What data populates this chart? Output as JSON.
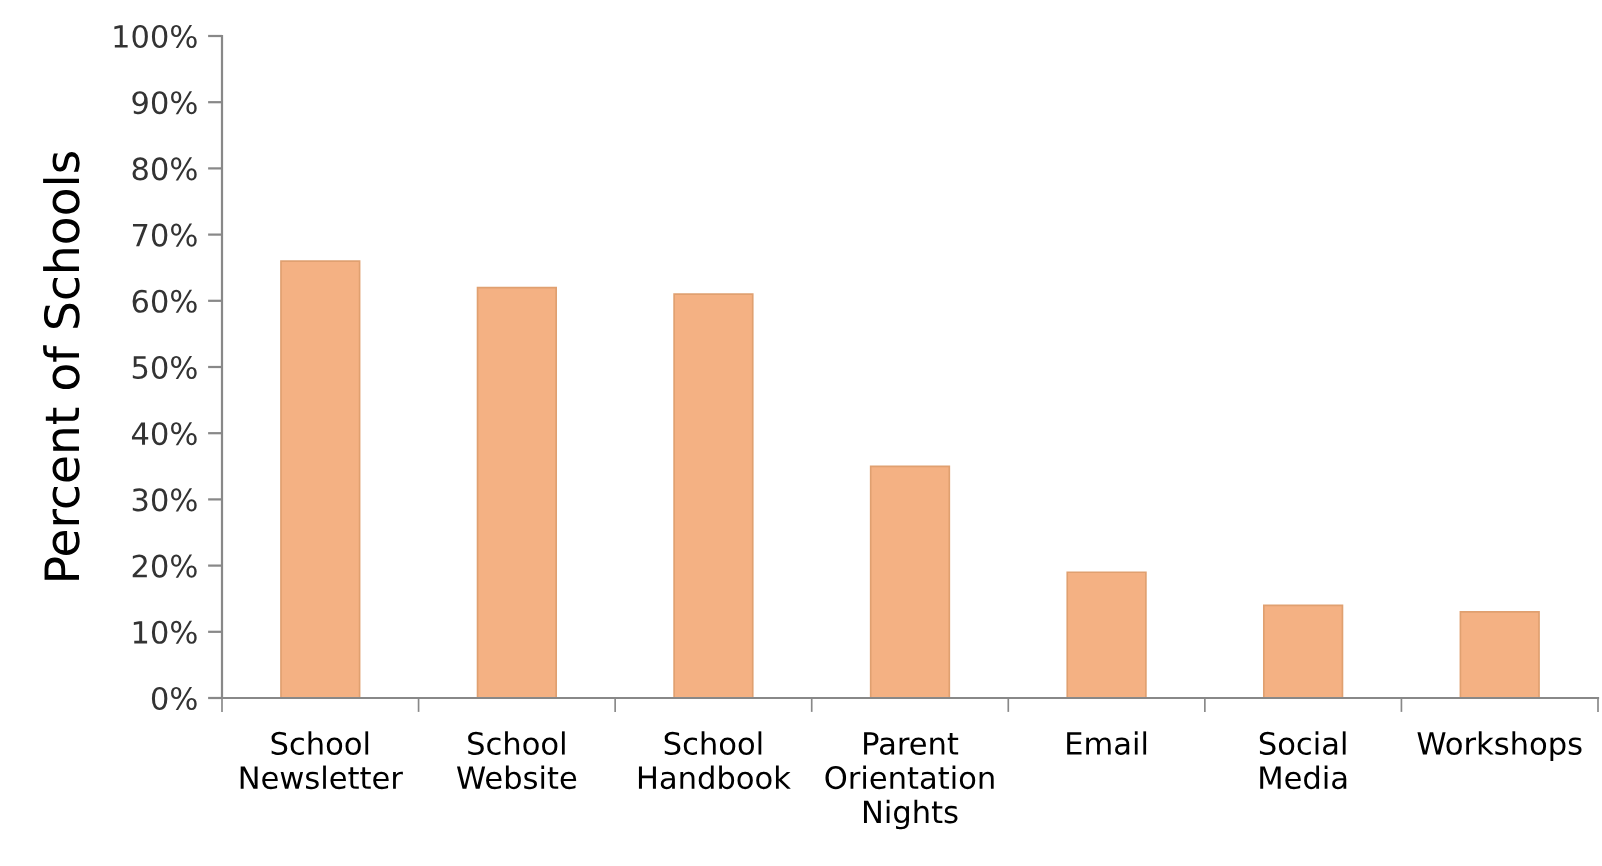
{
  "chart_data": {
    "type": "bar",
    "ylabel": "Percent of Schools",
    "categories": [
      "School\nNewsletter",
      "School\nWebsite",
      "School\nHandbook",
      "Parent\nOrientation\nNights",
      "Email",
      "Social\nMedia",
      "Workshops"
    ],
    "values": [
      66,
      62,
      61,
      35,
      19,
      14,
      13
    ],
    "color": "#f4b183",
    "ylim": [
      0,
      100
    ],
    "yticks": [
      {
        "value": 0,
        "label": "0%"
      },
      {
        "value": 10,
        "label": "10%"
      },
      {
        "value": 20,
        "label": "20%"
      },
      {
        "value": 30,
        "label": "30%"
      },
      {
        "value": 40,
        "label": "40%"
      },
      {
        "value": 50,
        "label": "50%"
      },
      {
        "value": 60,
        "label": "60%"
      },
      {
        "value": 70,
        "label": "70%"
      },
      {
        "value": 80,
        "label": "80%"
      },
      {
        "value": 90,
        "label": "90%"
      },
      {
        "value": 100,
        "label": "100%"
      }
    ],
    "grid": false,
    "legend": false
  }
}
